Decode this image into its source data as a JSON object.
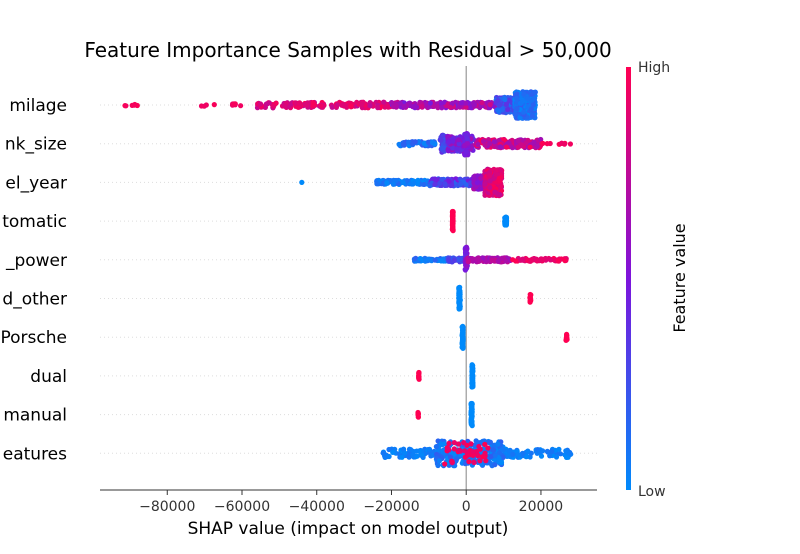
{
  "chart_data": {
    "type": "scatter",
    "subtype": "shap-beeswarm",
    "title": "Feature Importance Samples with Residual > 50,000",
    "xlabel": "SHAP value (impact on model output)",
    "ylabel": "",
    "xlim": [
      -98000,
      35000
    ],
    "xticks": [
      -80000,
      -60000,
      -40000,
      -20000,
      0,
      20000
    ],
    "xtick_labels": [
      "−80000",
      "−60000",
      "−40000",
      "−20000",
      "0",
      "20000"
    ],
    "grid": false,
    "features": [
      {
        "label": "milage",
        "clusters": [
          {
            "min": -92000,
            "max": -88000,
            "n": 6,
            "t0": 0.95,
            "t1": 1.0,
            "spread": 0.1
          },
          {
            "min": -74000,
            "max": -60000,
            "n": 10,
            "t0": 0.9,
            "t1": 1.0,
            "spread": 0.1
          },
          {
            "min": -56000,
            "max": -20000,
            "n": 160,
            "t0": 0.75,
            "t1": 1.0,
            "spread": 0.2
          },
          {
            "min": -20000,
            "max": 8000,
            "n": 200,
            "t0": 0.45,
            "t1": 0.85,
            "spread": 0.2
          },
          {
            "min": 8000,
            "max": 15000,
            "n": 180,
            "t0": 0.1,
            "t1": 0.4,
            "spread": 0.55
          },
          {
            "min": 13000,
            "max": 18500,
            "n": 300,
            "t0": 0.0,
            "t1": 0.2,
            "spread": 0.95
          }
        ]
      },
      {
        "label": "nk_size",
        "clusters": [
          {
            "min": -18000,
            "max": -8000,
            "n": 60,
            "t0": 0.0,
            "t1": 0.2,
            "spread": 0.15
          },
          {
            "min": -7000,
            "max": -5000,
            "n": 40,
            "t0": 0.2,
            "t1": 0.4,
            "spread": 0.6
          },
          {
            "min": -5000,
            "max": 2000,
            "n": 140,
            "t0": 0.3,
            "t1": 0.65,
            "spread": 0.55
          },
          {
            "min": -500,
            "max": 500,
            "n": 50,
            "t0": 0.4,
            "t1": 0.6,
            "spread": 0.8
          },
          {
            "min": 2000,
            "max": 20000,
            "n": 150,
            "t0": 0.6,
            "t1": 1.0,
            "spread": 0.3
          },
          {
            "min": 20000,
            "max": 28000,
            "n": 10,
            "t0": 0.9,
            "t1": 1.0,
            "spread": 0.05
          }
        ]
      },
      {
        "label": "el_year",
        "clusters": [
          {
            "min": -44000,
            "max": -44000,
            "n": 1,
            "t0": 0.0,
            "t1": 0.0,
            "spread": 0.0
          },
          {
            "min": -24000,
            "max": -10000,
            "n": 120,
            "t0": 0.0,
            "t1": 0.15,
            "spread": 0.15
          },
          {
            "min": -10000,
            "max": 2000,
            "n": 150,
            "t0": 0.15,
            "t1": 0.5,
            "spread": 0.25
          },
          {
            "min": 2000,
            "max": 5000,
            "n": 100,
            "t0": 0.5,
            "t1": 0.7,
            "spread": 0.5
          },
          {
            "min": 5000,
            "max": 9500,
            "n": 300,
            "t0": 0.75,
            "t1": 1.0,
            "spread": 0.95
          }
        ]
      },
      {
        "label": "tomatic",
        "clusters": [
          {
            "min": -3700,
            "max": -3500,
            "n": 60,
            "t0": 1.0,
            "t1": 1.0,
            "spread": 0.7
          },
          {
            "min": 10300,
            "max": 10800,
            "n": 40,
            "t0": 0.0,
            "t1": 0.0,
            "spread": 0.3
          }
        ]
      },
      {
        "label": "_power",
        "clusters": [
          {
            "min": -14000,
            "max": -5000,
            "n": 50,
            "t0": 0.0,
            "t1": 0.2,
            "spread": 0.1
          },
          {
            "min": -5000,
            "max": 0,
            "n": 50,
            "t0": 0.15,
            "t1": 0.35,
            "spread": 0.15
          },
          {
            "min": -300,
            "max": 300,
            "n": 40,
            "t0": 0.4,
            "t1": 0.6,
            "spread": 0.9
          },
          {
            "min": 0,
            "max": 12000,
            "n": 100,
            "t0": 0.6,
            "t1": 0.8,
            "spread": 0.15
          },
          {
            "min": 12000,
            "max": 27000,
            "n": 60,
            "t0": 0.85,
            "t1": 1.0,
            "spread": 0.1
          }
        ]
      },
      {
        "label": "d_other",
        "clusters": [
          {
            "min": -2000,
            "max": -1600,
            "n": 60,
            "t0": 0.0,
            "t1": 0.0,
            "spread": 0.8
          },
          {
            "min": 17000,
            "max": 17300,
            "n": 12,
            "t0": 1.0,
            "t1": 1.0,
            "spread": 0.3
          }
        ]
      },
      {
        "label": "Porsche",
        "clusters": [
          {
            "min": -1100,
            "max": -800,
            "n": 60,
            "t0": 0.0,
            "t1": 0.0,
            "spread": 0.8
          },
          {
            "min": 26700,
            "max": 27000,
            "n": 10,
            "t0": 1.0,
            "t1": 1.0,
            "spread": 0.25
          }
        ]
      },
      {
        "label": "dual",
        "clusters": [
          {
            "min": -12800,
            "max": -12600,
            "n": 12,
            "t0": 1.0,
            "t1": 1.0,
            "spread": 0.25
          },
          {
            "min": 1500,
            "max": 1800,
            "n": 60,
            "t0": 0.0,
            "t1": 0.0,
            "spread": 0.8
          }
        ]
      },
      {
        "label": "manual",
        "clusters": [
          {
            "min": -13000,
            "max": -12800,
            "n": 10,
            "t0": 1.0,
            "t1": 1.0,
            "spread": 0.2
          },
          {
            "min": 1300,
            "max": 1600,
            "n": 60,
            "t0": 0.0,
            "t1": 0.0,
            "spread": 0.8
          }
        ]
      },
      {
        "label": "eatures",
        "clusters": [
          {
            "min": -23000,
            "max": 28000,
            "n": 200,
            "t0": 0.0,
            "t1": 0.1,
            "spread": 0.3
          },
          {
            "min": -8000,
            "max": 10000,
            "n": 250,
            "t0": 0.0,
            "t1": 0.2,
            "spread": 0.9
          },
          {
            "min": -6000,
            "max": 6000,
            "n": 40,
            "t0": 0.9,
            "t1": 1.0,
            "spread": 0.8
          }
        ]
      }
    ],
    "colorbar": {
      "label": "Feature value",
      "high_label": "High",
      "low_label": "Low",
      "colors": [
        "#008afb",
        "#7d14dc",
        "#ff0052"
      ]
    },
    "colors": {
      "axis": "#333333",
      "zero_line": "#999999",
      "row_guide": "#dddddd"
    }
  }
}
